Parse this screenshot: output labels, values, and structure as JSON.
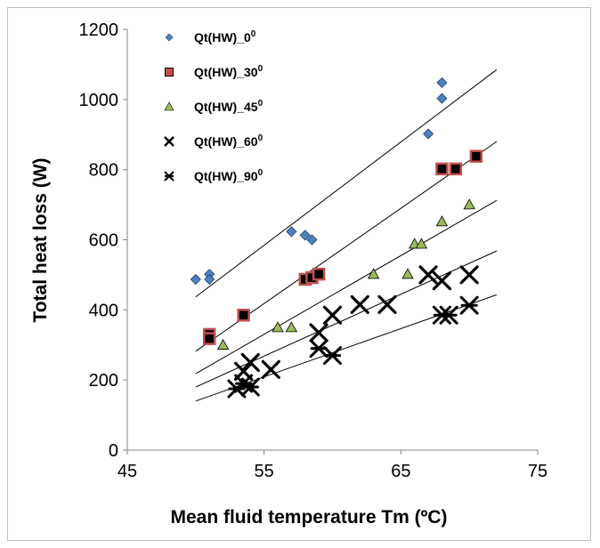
{
  "chart_data": {
    "type": "scatter",
    "xlabel": "Mean fluid temperature Tm (ºC)",
    "ylabel": "Total heat loss (W)",
    "xlim": [
      45,
      75
    ],
    "ylim": [
      0,
      1200
    ],
    "xticks": [
      45,
      55,
      65,
      75
    ],
    "yticks": [
      0,
      200,
      400,
      600,
      800,
      1000,
      1200
    ],
    "x_tick_labels": [
      "45",
      "55",
      "65",
      "75"
    ],
    "y_tick_labels": [
      "0",
      "200",
      "400",
      "600",
      "800",
      "1000",
      "1200"
    ],
    "grid": false,
    "legend_position": "top-left",
    "series": [
      {
        "name": "Qt(HW)_0",
        "name_sup": "0",
        "marker": "diamond",
        "color": "#4f81bd",
        "points": [
          [
            50,
            487
          ],
          [
            51,
            502
          ],
          [
            51,
            487
          ],
          [
            57,
            623
          ],
          [
            58,
            613
          ],
          [
            58.5,
            600
          ],
          [
            67,
            902
          ],
          [
            68,
            1003
          ],
          [
            68,
            1048
          ]
        ],
        "trendline": {
          "x": [
            50,
            72
          ],
          "y": [
            437,
            1085
          ]
        }
      },
      {
        "name": "Qt(HW)_30",
        "name_sup": "0",
        "marker": "square",
        "color": "#c0504d",
        "points": [
          [
            51,
            330
          ],
          [
            51,
            318
          ],
          [
            53.5,
            385
          ],
          [
            58,
            487
          ],
          [
            58.5,
            492
          ],
          [
            59,
            502
          ],
          [
            68,
            802
          ],
          [
            69,
            802
          ],
          [
            70.5,
            838
          ]
        ],
        "trendline": {
          "x": [
            50,
            72
          ],
          "y": [
            282,
            880
          ]
        }
      },
      {
        "name": "Qt(HW)_45",
        "name_sup": "0",
        "marker": "triangle",
        "color": "#9bbb59",
        "points": [
          [
            52,
            300
          ],
          [
            56,
            350
          ],
          [
            57,
            350
          ],
          [
            63,
            502
          ],
          [
            65.5,
            502
          ],
          [
            66,
            588
          ],
          [
            66.5,
            588
          ],
          [
            68,
            652
          ],
          [
            70,
            700
          ]
        ],
        "trendline": {
          "x": [
            50,
            72
          ],
          "y": [
            218,
            712
          ]
        }
      },
      {
        "name": "Qt(HW)_60",
        "name_sup": "0",
        "marker": "x",
        "color": "#000000",
        "points": [
          [
            53.5,
            225
          ],
          [
            54,
            250
          ],
          [
            55.5,
            230
          ],
          [
            59,
            335
          ],
          [
            60,
            385
          ],
          [
            62,
            415
          ],
          [
            64,
            415
          ],
          [
            67,
            500
          ],
          [
            68,
            483
          ],
          [
            70,
            500
          ]
        ],
        "trendline": {
          "x": [
            50,
            72
          ],
          "y": [
            180,
            568
          ]
        }
      },
      {
        "name": "Qt(HW)_90",
        "name_sup": "0",
        "marker": "star",
        "color": "#000000",
        "points": [
          [
            53,
            175
          ],
          [
            53.5,
            190
          ],
          [
            54,
            180
          ],
          [
            59,
            290
          ],
          [
            60,
            270
          ],
          [
            68,
            385
          ],
          [
            68.5,
            385
          ],
          [
            70,
            413
          ]
        ],
        "trendline": {
          "x": [
            50,
            72
          ],
          "y": [
            140,
            443
          ]
        }
      }
    ]
  }
}
